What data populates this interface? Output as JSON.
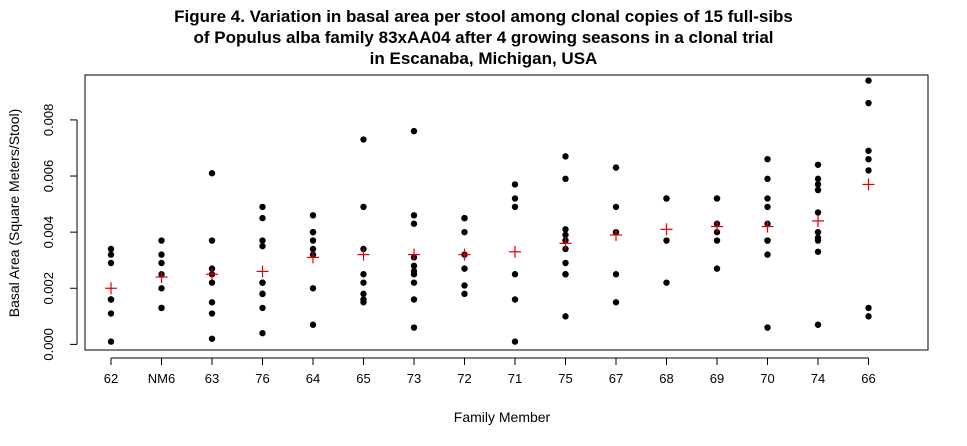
{
  "chart_data": {
    "type": "scatter",
    "title_lines": [
      "Figure 4. Variation in basal area per stool among clonal copies of 15 full-sibs",
      "of Populus alba family 83xAA04 after 4 growing seasons in a clonal trial",
      "in Escanaba, Michigan, USA"
    ],
    "xlabel": "Family Member",
    "ylabel": "Basal Area (Square Meters/Stool)",
    "ylim": [
      -0.0002,
      0.0096
    ],
    "yticks": [
      0,
      0.002,
      0.004,
      0.006,
      0.008
    ],
    "ytick_labels": [
      "0.000",
      "0.002",
      "0.004",
      "0.006",
      "0.008"
    ],
    "grid": false,
    "categories": [
      "62",
      "NM6",
      "63",
      "76",
      "64",
      "65",
      "73",
      "72",
      "71",
      "75",
      "67",
      "68",
      "69",
      "70",
      "74",
      "66"
    ],
    "series": [
      {
        "marker": "dot",
        "color": "#000000",
        "values": [
          [
            0.0034,
            0.0032,
            0.0029,
            0.0016,
            0.0016,
            0.0011,
            0.0001
          ],
          [
            0.0037,
            0.0032,
            0.0029,
            0.0025,
            0.002,
            0.0013,
            0.0013
          ],
          [
            0.0061,
            0.0037,
            0.0027,
            0.0025,
            0.0022,
            0.0015,
            0.0011,
            0.0002
          ],
          [
            0.0049,
            0.0045,
            0.0037,
            0.0035,
            0.0022,
            0.0022,
            0.0018,
            0.0018,
            0.0013,
            0.0004
          ],
          [
            0.0046,
            0.004,
            0.004,
            0.0037,
            0.0034,
            0.0032,
            0.002,
            0.0007
          ],
          [
            0.0073,
            0.0049,
            0.0034,
            0.0025,
            0.0022,
            0.0018,
            0.0016,
            0.0015
          ],
          [
            0.0076,
            0.0046,
            0.0043,
            0.0031,
            0.0028,
            0.0026,
            0.0025,
            0.0022,
            0.0016,
            0.0006
          ],
          [
            0.0045,
            0.0045,
            0.004,
            0.0032,
            0.0027,
            0.0021,
            0.0018
          ],
          [
            0.0057,
            0.0052,
            0.0049,
            0.0025,
            0.0016,
            0.0001
          ],
          [
            0.0067,
            0.0059,
            0.0041,
            0.0039,
            0.0037,
            0.0034,
            0.0029,
            0.0025,
            0.0025,
            0.001
          ],
          [
            0.0063,
            0.0049,
            0.004,
            0.0025,
            0.0015
          ],
          [
            0.0052,
            0.0052,
            0.0037,
            0.0022
          ],
          [
            0.0052,
            0.0052,
            0.0043,
            0.004,
            0.0037,
            0.0027
          ],
          [
            0.0066,
            0.0059,
            0.0052,
            0.0049,
            0.0043,
            0.0037,
            0.0037,
            0.0032,
            0.0006
          ],
          [
            0.0064,
            0.0059,
            0.0057,
            0.0055,
            0.0047,
            0.004,
            0.0038,
            0.0037,
            0.0033,
            0.0007
          ],
          [
            0.0094,
            0.0086,
            0.0069,
            0.0066,
            0.0062,
            0.0013,
            0.001
          ]
        ]
      },
      {
        "marker": "plus",
        "color": "#dd0000",
        "values": [
          0.002,
          0.0024,
          0.0025,
          0.0026,
          0.0031,
          0.0032,
          0.0032,
          0.0032,
          0.0033,
          0.0036,
          0.0039,
          0.0041,
          0.0042,
          0.0042,
          0.0044,
          0.0057
        ]
      }
    ]
  }
}
